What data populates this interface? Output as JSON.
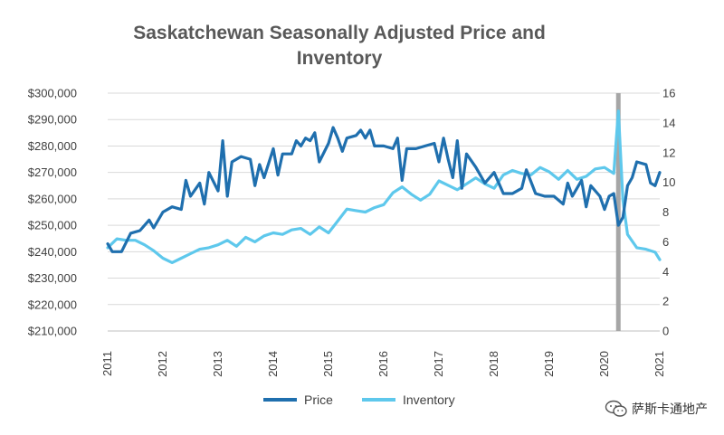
{
  "chart_data": {
    "type": "line",
    "title_lines": [
      "Saskatchewan Seasonally Adjusted Price and",
      "Inventory"
    ],
    "x_ticks": [
      "2011",
      "2012",
      "2013",
      "2014",
      "2015",
      "2016",
      "2017",
      "2018",
      "2019",
      "2020",
      "2021"
    ],
    "y_left_ticks": [
      "$210,000",
      "$220,000",
      "$230,000",
      "$240,000",
      "$250,000",
      "$260,000",
      "$270,000",
      "$280,000",
      "$290,000",
      "$300,000"
    ],
    "y_right_ticks": [
      "0",
      "2",
      "4",
      "6",
      "8",
      "10",
      "12",
      "14",
      "16"
    ],
    "y_left_range": [
      210000,
      300000
    ],
    "y_right_range": [
      0,
      16
    ],
    "x_range": [
      "2011-01",
      "2021-01"
    ],
    "marker_line": {
      "x": "2020-04",
      "color": "#a6a6a6"
    },
    "legend_position": "bottom",
    "series": [
      {
        "name": "Price",
        "axis": "left",
        "color": "#1f6fae",
        "values": [
          [
            "2011-01",
            243000
          ],
          [
            "2011-02",
            240000
          ],
          [
            "2011-04",
            240000
          ],
          [
            "2011-06",
            247000
          ],
          [
            "2011-08",
            248000
          ],
          [
            "2011-10",
            252000
          ],
          [
            "2011-11",
            249000
          ],
          [
            "2012-01",
            255000
          ],
          [
            "2012-03",
            257000
          ],
          [
            "2012-05",
            256000
          ],
          [
            "2012-06",
            267000
          ],
          [
            "2012-07",
            261000
          ],
          [
            "2012-09",
            266000
          ],
          [
            "2012-10",
            258000
          ],
          [
            "2012-11",
            270000
          ],
          [
            "2013-01",
            263000
          ],
          [
            "2013-02",
            282000
          ],
          [
            "2013-03",
            261000
          ],
          [
            "2013-04",
            274000
          ],
          [
            "2013-06",
            276000
          ],
          [
            "2013-08",
            275000
          ],
          [
            "2013-09",
            265000
          ],
          [
            "2013-10",
            273000
          ],
          [
            "2013-11",
            268000
          ],
          [
            "2014-01",
            279000
          ],
          [
            "2014-02",
            269000
          ],
          [
            "2014-03",
            277000
          ],
          [
            "2014-05",
            277000
          ],
          [
            "2014-06",
            282000
          ],
          [
            "2014-07",
            280000
          ],
          [
            "2014-08",
            283000
          ],
          [
            "2014-09",
            282000
          ],
          [
            "2014-10",
            285000
          ],
          [
            "2014-11",
            274000
          ],
          [
            "2015-01",
            281000
          ],
          [
            "2015-02",
            287000
          ],
          [
            "2015-03",
            283000
          ],
          [
            "2015-04",
            278000
          ],
          [
            "2015-05",
            283000
          ],
          [
            "2015-07",
            284000
          ],
          [
            "2015-08",
            286000
          ],
          [
            "2015-09",
            283000
          ],
          [
            "2015-10",
            286000
          ],
          [
            "2015-11",
            280000
          ],
          [
            "2016-01",
            280000
          ],
          [
            "2016-03",
            279000
          ],
          [
            "2016-04",
            283000
          ],
          [
            "2016-05",
            267000
          ],
          [
            "2016-06",
            279000
          ],
          [
            "2016-08",
            279000
          ],
          [
            "2016-10",
            280000
          ],
          [
            "2016-12",
            281000
          ],
          [
            "2017-01",
            274000
          ],
          [
            "2017-02",
            283000
          ],
          [
            "2017-03",
            275000
          ],
          [
            "2017-04",
            268000
          ],
          [
            "2017-05",
            282000
          ],
          [
            "2017-06",
            264000
          ],
          [
            "2017-07",
            277000
          ],
          [
            "2017-09",
            272000
          ],
          [
            "2017-11",
            266000
          ],
          [
            "2018-01",
            270000
          ],
          [
            "2018-03",
            262000
          ],
          [
            "2018-05",
            262000
          ],
          [
            "2018-07",
            264000
          ],
          [
            "2018-08",
            271000
          ],
          [
            "2018-10",
            262000
          ],
          [
            "2018-12",
            261000
          ],
          [
            "2019-02",
            261000
          ],
          [
            "2019-04",
            258000
          ],
          [
            "2019-05",
            266000
          ],
          [
            "2019-06",
            261000
          ],
          [
            "2019-08",
            267000
          ],
          [
            "2019-09",
            257000
          ],
          [
            "2019-10",
            265000
          ],
          [
            "2019-12",
            261000
          ],
          [
            "2020-01",
            256000
          ],
          [
            "2020-02",
            261000
          ],
          [
            "2020-03",
            262000
          ],
          [
            "2020-04",
            250000
          ],
          [
            "2020-05",
            253000
          ],
          [
            "2020-06",
            265000
          ],
          [
            "2020-07",
            268000
          ],
          [
            "2020-08",
            274000
          ],
          [
            "2020-10",
            273000
          ],
          [
            "2020-11",
            266000
          ],
          [
            "2020-12",
            265000
          ],
          [
            "2021-01",
            270000
          ]
        ]
      },
      {
        "name": "Inventory",
        "axis": "right",
        "color": "#5ec8ec",
        "values": [
          [
            "2011-01",
            5.6
          ],
          [
            "2011-03",
            6.2
          ],
          [
            "2011-05",
            6.1
          ],
          [
            "2011-07",
            6.1
          ],
          [
            "2011-09",
            5.8
          ],
          [
            "2011-11",
            5.4
          ],
          [
            "2012-01",
            4.9
          ],
          [
            "2012-03",
            4.6
          ],
          [
            "2012-05",
            4.9
          ],
          [
            "2012-07",
            5.2
          ],
          [
            "2012-09",
            5.5
          ],
          [
            "2012-11",
            5.6
          ],
          [
            "2013-01",
            5.8
          ],
          [
            "2013-03",
            6.1
          ],
          [
            "2013-05",
            5.7
          ],
          [
            "2013-07",
            6.3
          ],
          [
            "2013-09",
            6.0
          ],
          [
            "2013-11",
            6.4
          ],
          [
            "2014-01",
            6.6
          ],
          [
            "2014-03",
            6.5
          ],
          [
            "2014-05",
            6.8
          ],
          [
            "2014-07",
            6.9
          ],
          [
            "2014-09",
            6.5
          ],
          [
            "2014-11",
            7.0
          ],
          [
            "2015-01",
            6.6
          ],
          [
            "2015-03",
            7.4
          ],
          [
            "2015-05",
            8.2
          ],
          [
            "2015-07",
            8.1
          ],
          [
            "2015-09",
            8.0
          ],
          [
            "2015-11",
            8.3
          ],
          [
            "2016-01",
            8.5
          ],
          [
            "2016-03",
            9.3
          ],
          [
            "2016-05",
            9.7
          ],
          [
            "2016-07",
            9.2
          ],
          [
            "2016-09",
            8.8
          ],
          [
            "2016-11",
            9.2
          ],
          [
            "2017-01",
            10.1
          ],
          [
            "2017-03",
            9.8
          ],
          [
            "2017-05",
            9.5
          ],
          [
            "2017-07",
            9.9
          ],
          [
            "2017-09",
            10.3
          ],
          [
            "2017-11",
            9.9
          ],
          [
            "2018-01",
            9.6
          ],
          [
            "2018-03",
            10.5
          ],
          [
            "2018-05",
            10.8
          ],
          [
            "2018-07",
            10.6
          ],
          [
            "2018-09",
            10.5
          ],
          [
            "2018-11",
            11.0
          ],
          [
            "2019-01",
            10.7
          ],
          [
            "2019-03",
            10.2
          ],
          [
            "2019-05",
            10.8
          ],
          [
            "2019-07",
            10.2
          ],
          [
            "2019-09",
            10.4
          ],
          [
            "2019-11",
            10.9
          ],
          [
            "2020-01",
            11.0
          ],
          [
            "2020-03",
            10.6
          ],
          [
            "2020-04",
            14.8
          ],
          [
            "2020-05",
            8.8
          ],
          [
            "2020-06",
            6.5
          ],
          [
            "2020-08",
            5.6
          ],
          [
            "2020-10",
            5.5
          ],
          [
            "2020-12",
            5.3
          ],
          [
            "2021-01",
            4.8
          ]
        ]
      }
    ]
  },
  "watermark": {
    "text": "萨斯卡通地产",
    "icon": "wechat-icon"
  }
}
